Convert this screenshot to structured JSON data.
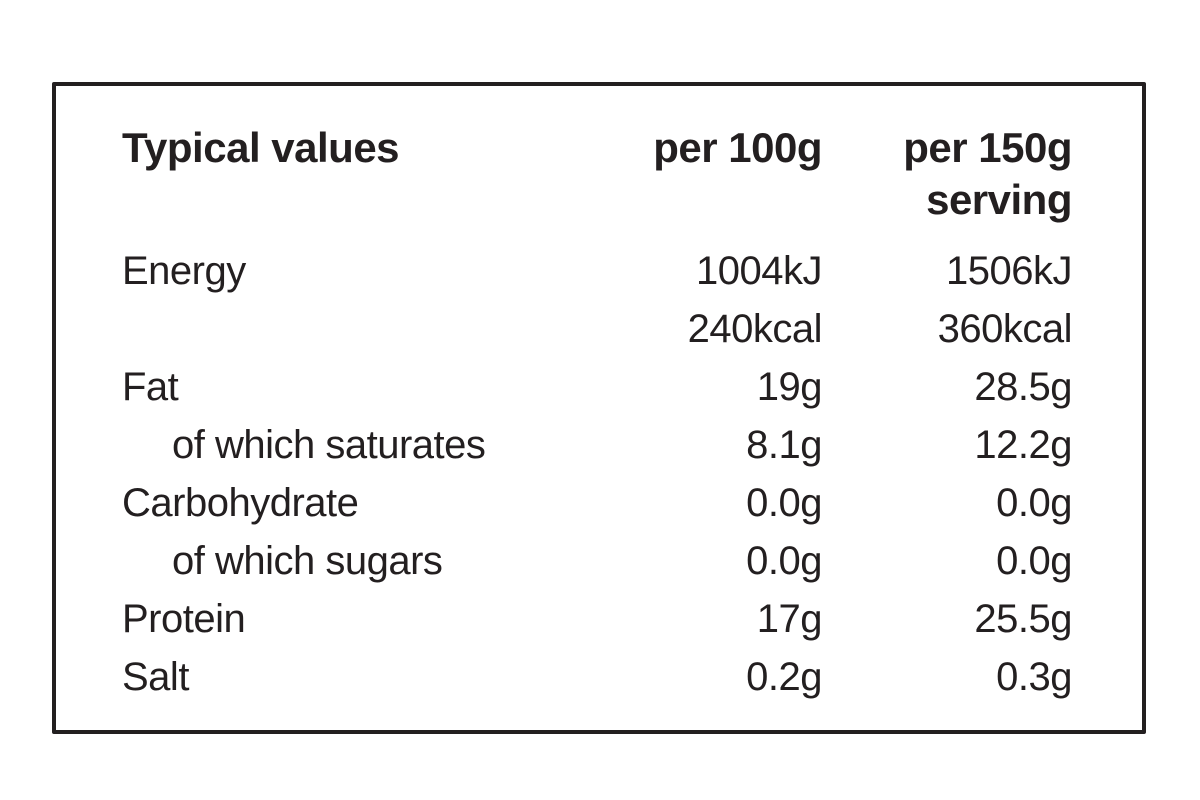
{
  "label": {
    "colors": {
      "text": "#231f20",
      "border": "#231f20",
      "background": "#ffffff"
    },
    "header": {
      "label": "Typical values",
      "per100": "per 100g",
      "per150": "per 150g\nserving"
    },
    "rows": [
      {
        "label": "Energy",
        "per100": "1004kJ",
        "per150": "1506kJ",
        "indent": false
      },
      {
        "label": "",
        "per100": "240kcal",
        "per150": "360kcal",
        "indent": false
      },
      {
        "label": "Fat",
        "per100": "19g",
        "per150": "28.5g",
        "indent": false
      },
      {
        "label": "of which saturates",
        "per100": "8.1g",
        "per150": "12.2g",
        "indent": true
      },
      {
        "label": "Carbohydrate",
        "per100": "0.0g",
        "per150": "0.0g",
        "indent": false
      },
      {
        "label": "of which sugars",
        "per100": "0.0g",
        "per150": "0.0g",
        "indent": true
      },
      {
        "label": "Protein",
        "per100": "17g",
        "per150": "25.5g",
        "indent": false
      },
      {
        "label": "Salt",
        "per100": "0.2g",
        "per150": "0.3g",
        "indent": false
      }
    ]
  }
}
